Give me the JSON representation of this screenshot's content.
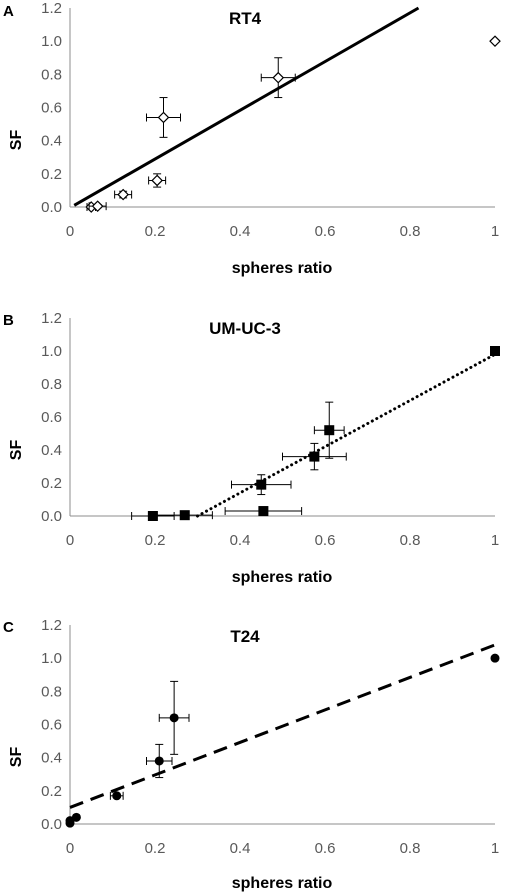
{
  "chart_data": [
    {
      "type": "scatter",
      "panel": "A",
      "title": "RT4",
      "xlabel": "spheres ratio",
      "ylabel": "SF",
      "xlim": [
        0,
        1
      ],
      "ylim": [
        0,
        1.2
      ],
      "xticks": [
        "0",
        "0.2",
        "0.4",
        "0.6",
        "0.8",
        "1"
      ],
      "yticks": [
        "0.0",
        "0.2",
        "0.4",
        "0.6",
        "0.8",
        "1.0",
        "1.2"
      ],
      "marker": "open-diamond",
      "trendline": {
        "style": "solid",
        "x": [
          0.01,
          0.82
        ],
        "y": [
          0.01,
          1.2
        ]
      },
      "points": [
        {
          "x": 0.05,
          "y": 0.0,
          "xerr": 0.01,
          "yerr": 0.01
        },
        {
          "x": 0.065,
          "y": 0.005,
          "xerr": 0.02,
          "yerr": 0.01
        },
        {
          "x": 0.125,
          "y": 0.075,
          "xerr": 0.02,
          "yerr": 0.02
        },
        {
          "x": 0.205,
          "y": 0.16,
          "xerr": 0.02,
          "yerr": 0.04
        },
        {
          "x": 0.22,
          "y": 0.54,
          "xerr": 0.04,
          "yerr": 0.12
        },
        {
          "x": 0.49,
          "y": 0.78,
          "xerr": 0.04,
          "yerr": 0.12
        },
        {
          "x": 1.0,
          "y": 1.0,
          "xerr": 0,
          "yerr": 0
        }
      ]
    },
    {
      "type": "scatter",
      "panel": "B",
      "title": "UM-UC-3",
      "xlabel": "spheres ratio",
      "ylabel": "SF",
      "xlim": [
        0,
        1
      ],
      "ylim": [
        0,
        1.2
      ],
      "xticks": [
        "0",
        "0.2",
        "0.4",
        "0.6",
        "0.8",
        "1"
      ],
      "yticks": [
        "0.0",
        "0.2",
        "0.4",
        "0.6",
        "0.8",
        "1.0",
        "1.2"
      ],
      "marker": "filled-square",
      "trendline": {
        "style": "dotted",
        "x": [
          0.3,
          1.0
        ],
        "y": [
          0.0,
          0.98
        ]
      },
      "points": [
        {
          "x": 0.195,
          "y": 0.0,
          "xerr": 0.05,
          "yerr": 0
        },
        {
          "x": 0.27,
          "y": 0.005,
          "xerr": 0.065,
          "yerr": 0
        },
        {
          "x": 0.455,
          "y": 0.03,
          "xerr": 0.09,
          "yerr": 0
        },
        {
          "x": 0.45,
          "y": 0.19,
          "xerr": 0.07,
          "yerr": 0.06
        },
        {
          "x": 0.575,
          "y": 0.36,
          "xerr": 0.075,
          "yerr": 0.08
        },
        {
          "x": 0.61,
          "y": 0.52,
          "xerr": 0.035,
          "yerr": 0.17
        },
        {
          "x": 1.0,
          "y": 1.0,
          "xerr": 0,
          "yerr": 0
        }
      ]
    },
    {
      "type": "scatter",
      "panel": "C",
      "title": "T24",
      "xlabel": "spheres ratio",
      "ylabel": "SF",
      "xlim": [
        0,
        1
      ],
      "ylim": [
        0,
        1.2
      ],
      "xticks": [
        "0",
        "0.2",
        "0.4",
        "0.6",
        "0.8",
        "1"
      ],
      "yticks": [
        "0.0",
        "0.2",
        "0.4",
        "0.6",
        "0.8",
        "1.0",
        "1.2"
      ],
      "marker": "filled-circle",
      "trendline": {
        "style": "dashed",
        "x": [
          0.0,
          1.0
        ],
        "y": [
          0.1,
          1.08
        ]
      },
      "points": [
        {
          "x": 0.0,
          "y": 0.005,
          "xerr": 0,
          "yerr": 0
        },
        {
          "x": 0.0,
          "y": 0.02,
          "xerr": 0,
          "yerr": 0
        },
        {
          "x": 0.015,
          "y": 0.04,
          "xerr": 0,
          "yerr": 0
        },
        {
          "x": 0.11,
          "y": 0.17,
          "xerr": 0.015,
          "yerr": 0.01
        },
        {
          "x": 0.21,
          "y": 0.38,
          "xerr": 0.03,
          "yerr": 0.1
        },
        {
          "x": 0.245,
          "y": 0.64,
          "xerr": 0.035,
          "yerr": 0.22
        },
        {
          "x": 1.0,
          "y": 1.0,
          "xerr": 0,
          "yerr": 0
        }
      ]
    }
  ]
}
